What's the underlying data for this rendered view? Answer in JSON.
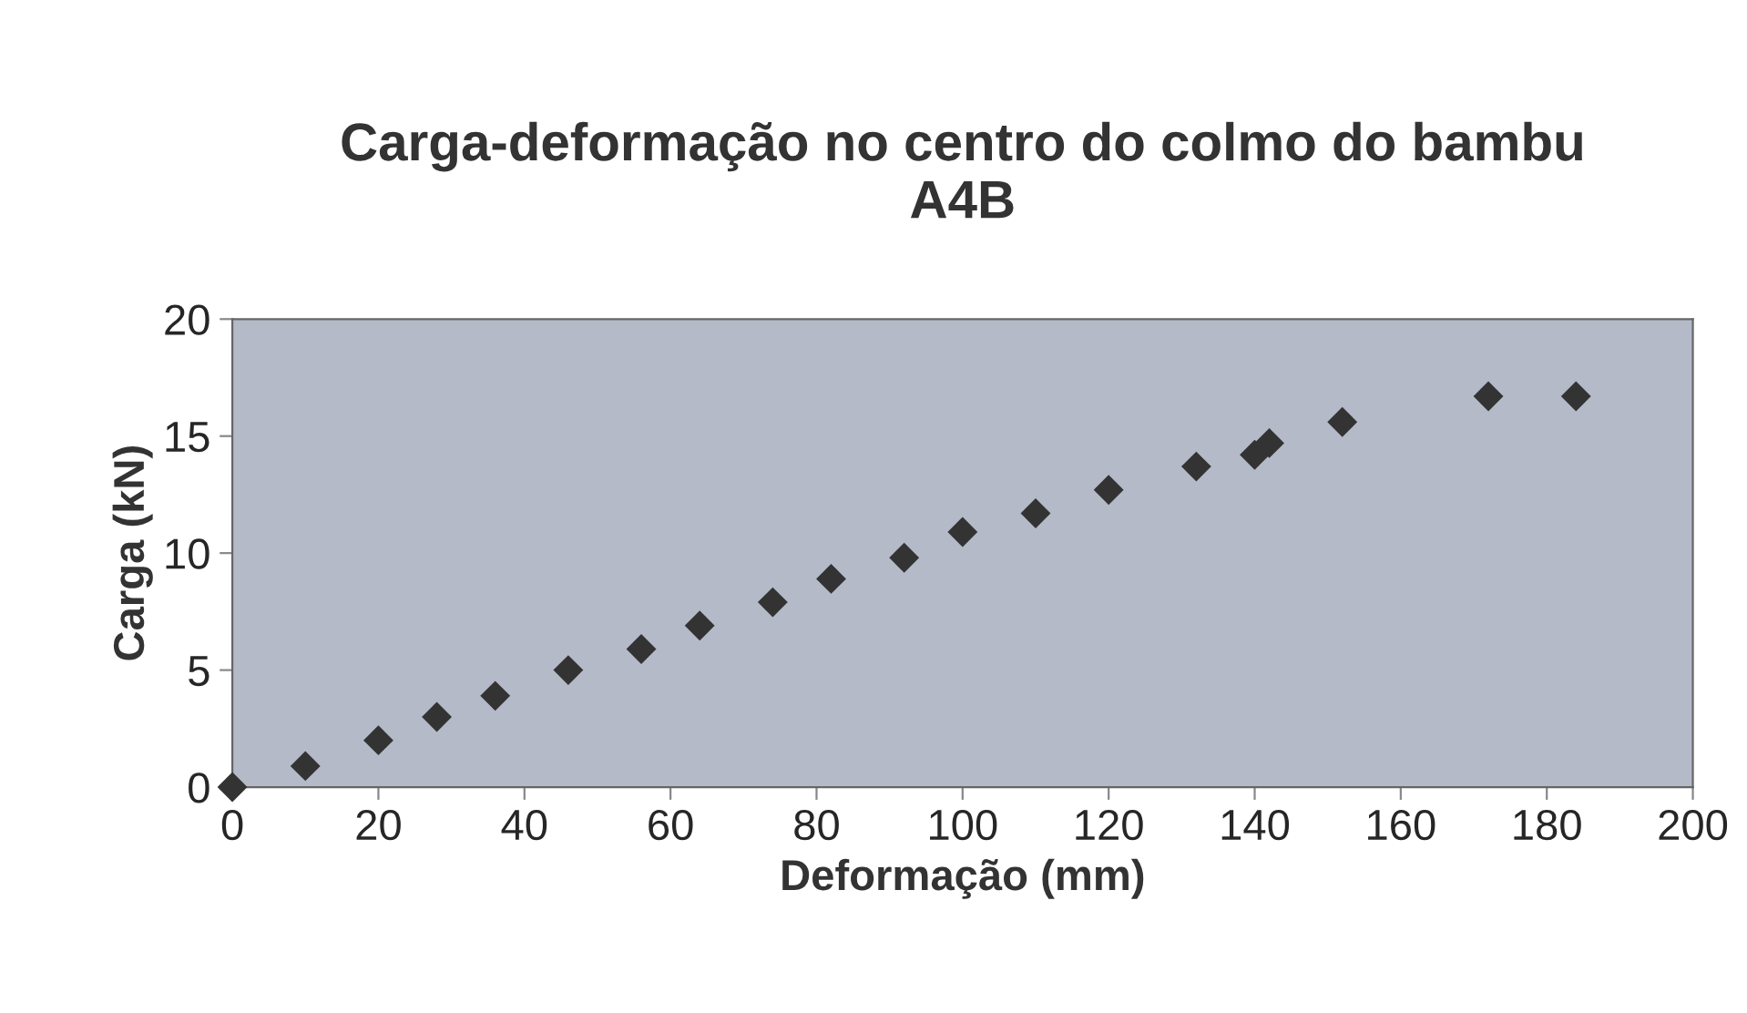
{
  "chart_data": {
    "type": "scatter",
    "title": "Carga-deformação no centro do colmo do bambu\nA4B",
    "xlabel": "Deformação (mm)",
    "ylabel": "Carga (kN)",
    "x": [
      0,
      10,
      20,
      28,
      36,
      46,
      56,
      64,
      74,
      82,
      92,
      100,
      110,
      120,
      132,
      140,
      142,
      152,
      172,
      184
    ],
    "series": [
      {
        "color": "#333333",
        "values": [
          0,
          0.9,
          2,
          3,
          3.9,
          5,
          5.9,
          6.9,
          7.9,
          8.9,
          9.8,
          10.9,
          11.7,
          12.7,
          13.7,
          14.2,
          14.7,
          15.6,
          16.7,
          16.7
        ]
      }
    ],
    "xlim": [
      0,
      200
    ],
    "xticks": [
      0,
      20,
      40,
      60,
      80,
      100,
      120,
      140,
      160,
      180,
      200
    ],
    "ylim": [
      0,
      20
    ],
    "yticks": [
      0,
      5,
      10,
      15,
      20
    ],
    "marker": "diamond",
    "grid": false,
    "legend": false
  }
}
